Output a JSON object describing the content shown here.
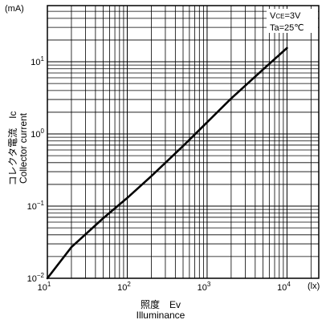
{
  "chart_data": {
    "type": "line",
    "title": "",
    "xlabel": "照度　Ev",
    "xlabel_en": "Illuminance",
    "ylabel": "コレクタ電流　Ic",
    "ylabel_en": "Collector current",
    "x_unit": "(lx)",
    "y_unit": "(mA)",
    "x_scale": "log",
    "y_scale": "log",
    "xlim": [
      10,
      25000
    ],
    "ylim": [
      0.01,
      60
    ],
    "grid": true,
    "x_ticks": [
      {
        "value": 10,
        "base": "10",
        "exp": "1"
      },
      {
        "value": 100,
        "base": "10",
        "exp": "2"
      },
      {
        "value": 1000,
        "base": "10",
        "exp": "3"
      },
      {
        "value": 10000,
        "base": "10",
        "exp": "4"
      }
    ],
    "y_ticks": [
      {
        "value": 0.01,
        "base": "10",
        "exp": "−2"
      },
      {
        "value": 0.1,
        "base": "10",
        "exp": "−1"
      },
      {
        "value": 1,
        "base": "10",
        "exp": "0"
      },
      {
        "value": 10,
        "base": "10",
        "exp": "1"
      }
    ],
    "annotations": [
      {
        "main": "V",
        "sub": "CE",
        "rest": "=3V"
      },
      {
        "main": "Ta=25℃",
        "sub": "",
        "rest": ""
      }
    ],
    "series": [
      {
        "x": [
          10,
          20,
          50,
          100,
          200,
          500,
          1000,
          2000,
          5000,
          10000
        ],
        "y": [
          0.01,
          0.027,
          0.068,
          0.13,
          0.26,
          0.68,
          1.45,
          3.1,
          7.8,
          15.5
        ]
      }
    ]
  }
}
